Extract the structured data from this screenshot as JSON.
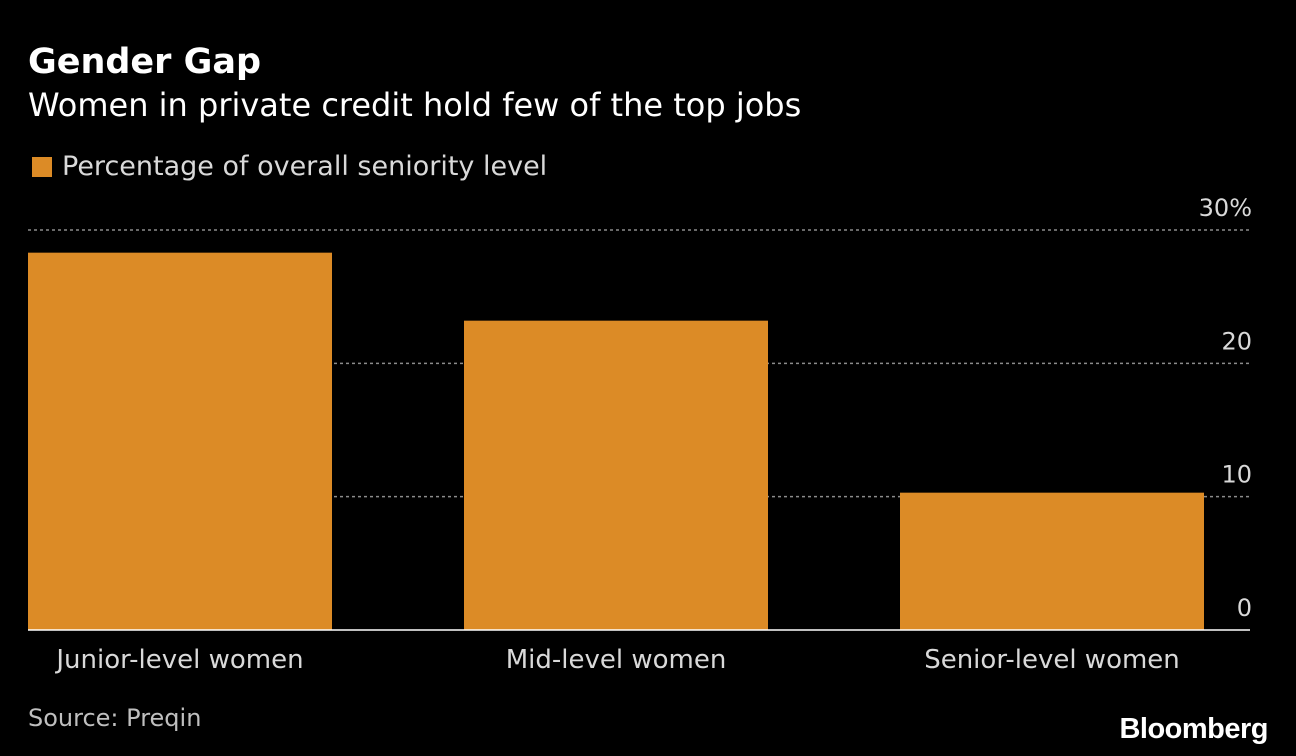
{
  "header": {
    "title": "Gender Gap",
    "subtitle": "Women in private credit hold few of the top jobs"
  },
  "legend": {
    "label": "Percentage of overall seniority level",
    "color": "#dc8b26"
  },
  "footer": {
    "source": "Source: Preqin",
    "brand": "Bloomberg"
  },
  "colors": {
    "background": "#000000",
    "bar": "#dc8b26",
    "grid": "#8c8c8c",
    "axis": "#ffffff",
    "tick_text": "#d9d9d9",
    "category_text": "#d9d9d9"
  },
  "chart_data": {
    "type": "bar",
    "categories": [
      "Junior-level women",
      "Mid-level women",
      "Senior-level women"
    ],
    "series": [
      {
        "name": "Percentage of overall seniority level",
        "values": [
          28.3,
          23.2,
          10.3
        ]
      }
    ],
    "ylim": [
      0,
      30
    ],
    "yticks": [
      0,
      10,
      20,
      30
    ],
    "ytick_labels": [
      "0",
      "10",
      "20",
      "30%"
    ],
    "y_axis_side": "right",
    "grid": true,
    "legend_position": "top-left",
    "title": "Gender Gap",
    "subtitle": "Women in private credit hold few of the top jobs",
    "xlabel": "",
    "ylabel": ""
  }
}
